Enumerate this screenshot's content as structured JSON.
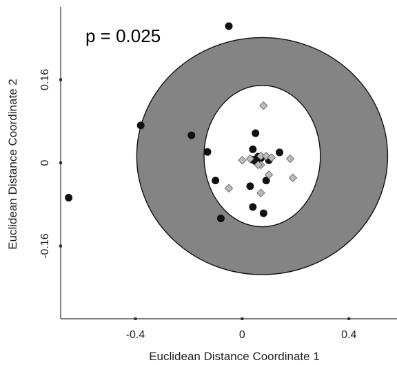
{
  "chart_data": {
    "type": "scatter",
    "title": "",
    "xlabel": "Euclidean Distance Coordinate 1",
    "ylabel": "Euclidean Distance Coordinate 2",
    "annotation": "p = 0.025",
    "xlim": [
      -0.68,
      0.58
    ],
    "ylim": [
      -0.3,
      0.3
    ],
    "x_ticks": [
      {
        "value": -0.4,
        "label": "-0.4"
      },
      {
        "value": 0,
        "label": "0"
      },
      {
        "value": 0.4,
        "label": "0.4"
      }
    ],
    "y_ticks": [
      {
        "value": -0.16,
        "label": "-0.16"
      },
      {
        "value": 0,
        "label": "0"
      },
      {
        "value": 0.16,
        "label": "0.16"
      }
    ],
    "grid": false,
    "legend": "none",
    "colors": {
      "outer_ellipse": "#848484",
      "inner_ellipse": "#ffffff",
      "circle_points": "#111111",
      "diamond_points": "#bcbcbc"
    },
    "ellipses": [
      {
        "kind": "outer",
        "cx": 0.075,
        "cy": 0.013,
        "rx": 0.47,
        "ry": 0.228
      },
      {
        "kind": "inner",
        "cx": 0.075,
        "cy": 0.013,
        "rx": 0.218,
        "ry": 0.136
      }
    ],
    "series": [
      {
        "marker": "circle",
        "points": [
          [
            -0.05,
            0.263
          ],
          [
            -0.38,
            0.072
          ],
          [
            -0.19,
            0.053
          ],
          [
            -0.13,
            0.021
          ],
          [
            -0.65,
            -0.067
          ],
          [
            -0.1,
            -0.034
          ],
          [
            -0.08,
            -0.107
          ],
          [
            0.05,
            0.057
          ],
          [
            0.04,
            0.026
          ],
          [
            0.04,
            0.006
          ],
          [
            0.05,
            0.003
          ],
          [
            0.1,
            0.005
          ],
          [
            0.14,
            0.02
          ],
          [
            0.07,
            0.009
          ],
          [
            0.09,
            -0.034
          ],
          [
            0.03,
            -0.045
          ],
          [
            0.04,
            -0.085
          ],
          [
            0.08,
            -0.097
          ],
          [
            0.06,
            0.012
          ],
          [
            0.06,
            -0.002
          ]
        ]
      },
      {
        "marker": "diamond",
        "points": [
          [
            0.08,
            0.11
          ],
          [
            0.0,
            0.005
          ],
          [
            0.03,
            0.008
          ],
          [
            0.07,
            0.013
          ],
          [
            0.09,
            0.013
          ],
          [
            0.07,
            -0.004
          ],
          [
            0.06,
            -0.004
          ],
          [
            0.1,
            -0.023
          ],
          [
            0.18,
            0.008
          ],
          [
            0.19,
            -0.029
          ],
          [
            -0.05,
            -0.049
          ],
          [
            0.07,
            -0.058
          ],
          [
            0.11,
            0.01
          ]
        ]
      }
    ]
  }
}
